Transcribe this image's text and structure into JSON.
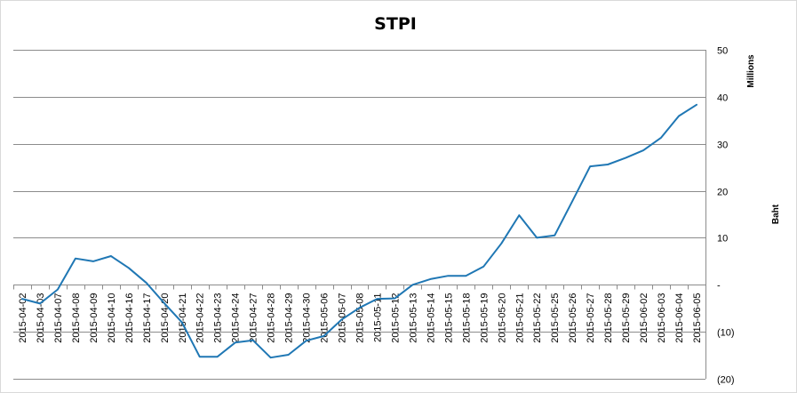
{
  "chart_data": {
    "type": "line",
    "title": "STPI",
    "ylabel": "Baht",
    "y_unit_label": "Millions",
    "ylim": [
      -20,
      50
    ],
    "y_ticks": [
      {
        "value": 50,
        "label": "50"
      },
      {
        "value": 40,
        "label": "40"
      },
      {
        "value": 30,
        "label": "30"
      },
      {
        "value": 20,
        "label": "20"
      },
      {
        "value": 10,
        "label": "10"
      },
      {
        "value": 0,
        "label": "-"
      },
      {
        "value": -10,
        "label": "(10)"
      },
      {
        "value": -20,
        "label": "(20)"
      }
    ],
    "grid": true,
    "legend": "none",
    "line_color": "#1f77b4",
    "categories": [
      "2015-04-02",
      "2015-04-03",
      "2015-04-07",
      "2015-04-08",
      "2015-04-09",
      "2015-04-10",
      "2015-04-16",
      "2015-04-17",
      "2015-04-20",
      "2015-04-21",
      "2015-04-22",
      "2015-04-23",
      "2015-04-24",
      "2015-04-27",
      "2015-04-28",
      "2015-04-29",
      "2015-04-30",
      "2015-05-06",
      "2015-05-07",
      "2015-05-08",
      "2015-05-11",
      "2015-05-12",
      "2015-05-13",
      "2015-05-14",
      "2015-05-15",
      "2015-05-18",
      "2015-05-19",
      "2015-05-20",
      "2015-05-21",
      "2015-05-22",
      "2015-05-25",
      "2015-05-26",
      "2015-05-27",
      "2015-05-28",
      "2015-05-29",
      "2015-06-02",
      "2015-06-03",
      "2015-06-04",
      "2015-06-05"
    ],
    "values": [
      -3.0,
      -4.0,
      -1.0,
      5.6,
      5.0,
      6.1,
      3.6,
      0.4,
      -3.9,
      -8.0,
      -15.3,
      -15.3,
      -12.3,
      -11.8,
      -15.5,
      -14.9,
      -11.9,
      -10.9,
      -7.4,
      -4.9,
      -3.0,
      -2.9,
      0.0,
      1.2,
      1.9,
      1.9,
      3.9,
      8.8,
      14.8,
      10.0,
      10.5,
      17.8,
      25.2,
      25.6,
      27.0,
      28.6,
      31.3,
      35.9,
      38.3
    ]
  }
}
